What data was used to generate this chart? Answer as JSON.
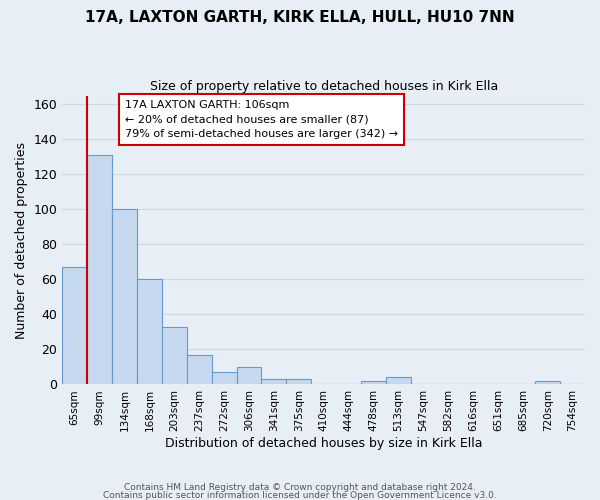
{
  "title1": "17A, LAXTON GARTH, KIRK ELLA, HULL, HU10 7NN",
  "title2": "Size of property relative to detached houses in Kirk Ella",
  "xlabel": "Distribution of detached houses by size in Kirk Ella",
  "ylabel": "Number of detached properties",
  "bar_labels": [
    "65sqm",
    "99sqm",
    "134sqm",
    "168sqm",
    "203sqm",
    "237sqm",
    "272sqm",
    "306sqm",
    "341sqm",
    "375sqm",
    "410sqm",
    "444sqm",
    "478sqm",
    "513sqm",
    "547sqm",
    "582sqm",
    "616sqm",
    "651sqm",
    "685sqm",
    "720sqm",
    "754sqm"
  ],
  "bar_values": [
    67,
    131,
    100,
    60,
    33,
    17,
    7,
    10,
    3,
    3,
    0,
    0,
    2,
    4,
    0,
    0,
    0,
    0,
    0,
    2,
    0
  ],
  "bar_color": "#c6d9ee",
  "bar_edge_color": "#6699cc",
  "ylim": [
    0,
    165
  ],
  "yticks": [
    0,
    20,
    40,
    60,
    80,
    100,
    120,
    140,
    160
  ],
  "annotation_title": "17A LAXTON GARTH: 106sqm",
  "annotation_line1": "← 20% of detached houses are smaller (87)",
  "annotation_line2": "79% of semi-detached houses are larger (342) →",
  "footer1": "Contains HM Land Registry data © Crown copyright and database right 2024.",
  "footer2": "Contains public sector information licensed under the Open Government Licence v3.0.",
  "red_line_color": "#cc0000",
  "annotation_box_color": "#ffffff",
  "annotation_box_edge": "#cc0000",
  "grid_color": "#ccd8e8",
  "background_color": "#e8eef5"
}
